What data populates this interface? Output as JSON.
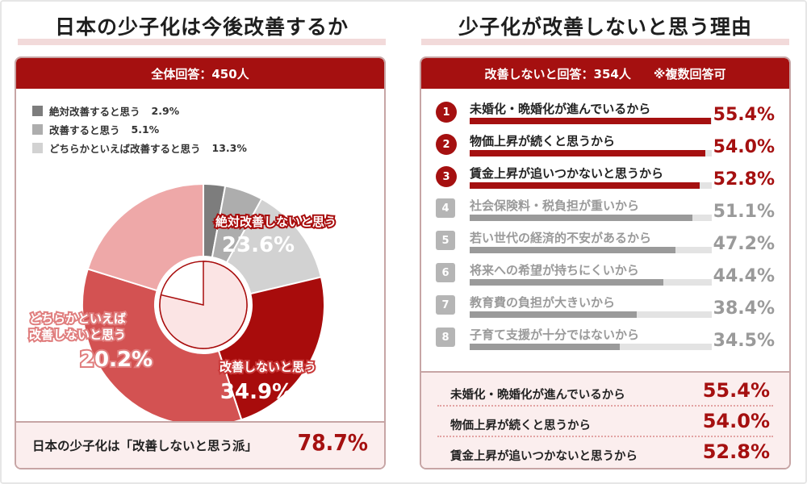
{
  "left": {
    "title": "日本の少子化は今後改善するか",
    "header": "全体回答：450人",
    "legend": [
      {
        "label": "絶対改善すると思う",
        "pct": "2.9%",
        "color": "#7d7d7d"
      },
      {
        "label": "改善すると思う",
        "pct": "5.1%",
        "color": "#adadad"
      },
      {
        "label": "どちらかといえば改善すると思う",
        "pct": "13.3%",
        "color": "#d2d2d2"
      }
    ],
    "slice_labels": {
      "s1_line1": "絶対改善しないと思う",
      "s1_value": "23.6%",
      "s2_line1": "改善しないと思う",
      "s2_value": "34.9%",
      "s3_line1": "どちらかといえば",
      "s3_line2": "改善しないと思う",
      "s3_value": "20.2%"
    },
    "bottom_text": "日本の少子化は「改善しないと思う派」",
    "bottom_pct": "78.7%"
  },
  "right": {
    "title": "少子化が改善しないと思う理由",
    "header_left": "改善しないと回答：354人",
    "header_right": "※複数回答可",
    "summary": [
      {
        "label": "未婚化・晩婚化が進んでいるから",
        "pct": "55.4%"
      },
      {
        "label": "物価上昇が続くと思うから",
        "pct": "54.0%"
      },
      {
        "label": "賃金上昇が追いつかないと思うから",
        "pct": "52.8%"
      }
    ]
  },
  "colors": {
    "accent": "#a51010",
    "grey_text": "#9a9a9a",
    "pie_slices": [
      "#7d7d7d",
      "#adadad",
      "#d2d2d2",
      "#a80c0c",
      "#d35252",
      "#eea8a8"
    ]
  },
  "chart_data": [
    {
      "type": "pie",
      "title": "日本の少子化は今後改善するか",
      "categories": [
        "絶対改善すると思う",
        "改善すると思う",
        "どちらかといえば改善すると思う",
        "絶対改善しないと思う",
        "改善しないと思う",
        "どちらかといえば改善しないと思う"
      ],
      "values": [
        2.9,
        5.1,
        13.3,
        23.6,
        34.9,
        20.2
      ],
      "unit": "%"
    },
    {
      "type": "bar",
      "title": "少子化が改善しないと思う理由",
      "categories": [
        "未婚化・晩婚化が進んでいるから",
        "物価上昇が続くと思うから",
        "賃金上昇が追いつかないと思うから",
        "社会保険料・税負担が重いから",
        "若い世代の経済的不安があるから",
        "将来への希望が持ちにくいから",
        "教育費の負担が大きいから",
        "子育て支援が十分ではないから"
      ],
      "ranks": [
        "1",
        "2",
        "3",
        "4",
        "5",
        "6",
        "7",
        "8"
      ],
      "values": [
        55.4,
        54.0,
        52.8,
        51.1,
        47.2,
        44.4,
        38.4,
        34.5
      ],
      "value_labels": [
        "55.4%",
        "54.0%",
        "52.8%",
        "51.1%",
        "47.2%",
        "44.4%",
        "38.4%",
        "34.5%"
      ],
      "xlim": [
        0,
        100
      ]
    }
  ]
}
